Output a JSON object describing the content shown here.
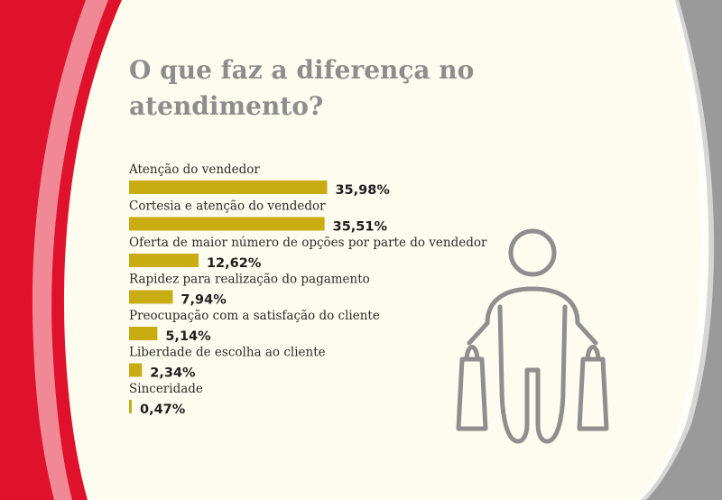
{
  "colors": {
    "background": "#fdfcee",
    "bar": "#c8ac12",
    "red": "#e0112b",
    "gray": "#9a9a9b",
    "title": "#8d8d8d",
    "icon": "#8f8f8f"
  },
  "icon": "shopper-with-bags-icon",
  "chart_data": {
    "type": "bar",
    "orientation": "horizontal",
    "title": "O que faz a diferença no atendimento?",
    "categories": [
      "Atenção do vendedor",
      "Cortesia e atenção do vendedor",
      "Oferta de maior número de opções por parte do vendedor",
      "Rapidez para realização do pagamento",
      "Preocupação com a satisfação do cliente",
      "Liberdade de escolha ao cliente",
      "Sinceridade"
    ],
    "values": [
      35.98,
      35.51,
      12.62,
      7.94,
      5.14,
      2.34,
      0.47
    ],
    "value_labels": [
      "35,98%",
      "35,51%",
      "12,62%",
      "7,94%",
      "5,14%",
      "2,34%",
      "0,47%"
    ],
    "unit": "%",
    "grid": false,
    "legend": "none"
  }
}
